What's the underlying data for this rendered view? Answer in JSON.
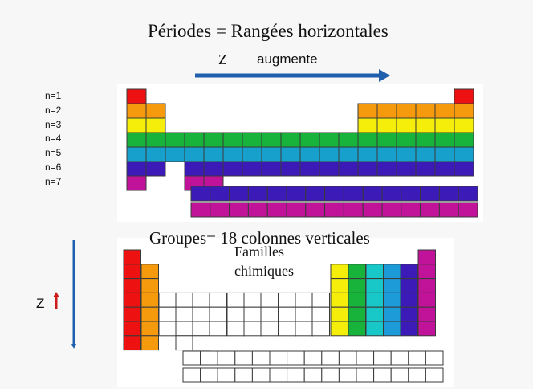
{
  "top": {
    "title": "Périodes =  Rangées horizontales",
    "z_label": "Z",
    "augmente": "augmente",
    "period_labels": [
      "n=1",
      "n=2",
      "n=3",
      "n=4",
      "n=5",
      "n=6",
      "n=7"
    ],
    "row_colors": [
      "#ee1111",
      "#f59a0c",
      "#f4ee0a",
      "#17b33a",
      "#18a0cc",
      "#3b1ab8",
      "#c1139a"
    ],
    "arrow_color": "#1f5fae"
  },
  "bottom": {
    "title": "Groupes= 18 colonnes verticales",
    "families_line1": "Familles",
    "families_line2": "chimiques",
    "z_label": "Z",
    "column_colors": {
      "g1": "#ee1111",
      "g2": "#f59a0c",
      "g13": "#f4ee0a",
      "g14": "#17b33a",
      "g15": "#18c8c8",
      "g16": "#1d9ad8",
      "g17": "#3b1ab8",
      "g18": "#c1139a"
    },
    "arrow_color": "#1f5fae",
    "small_arrow_color": "#cc1a1a"
  }
}
